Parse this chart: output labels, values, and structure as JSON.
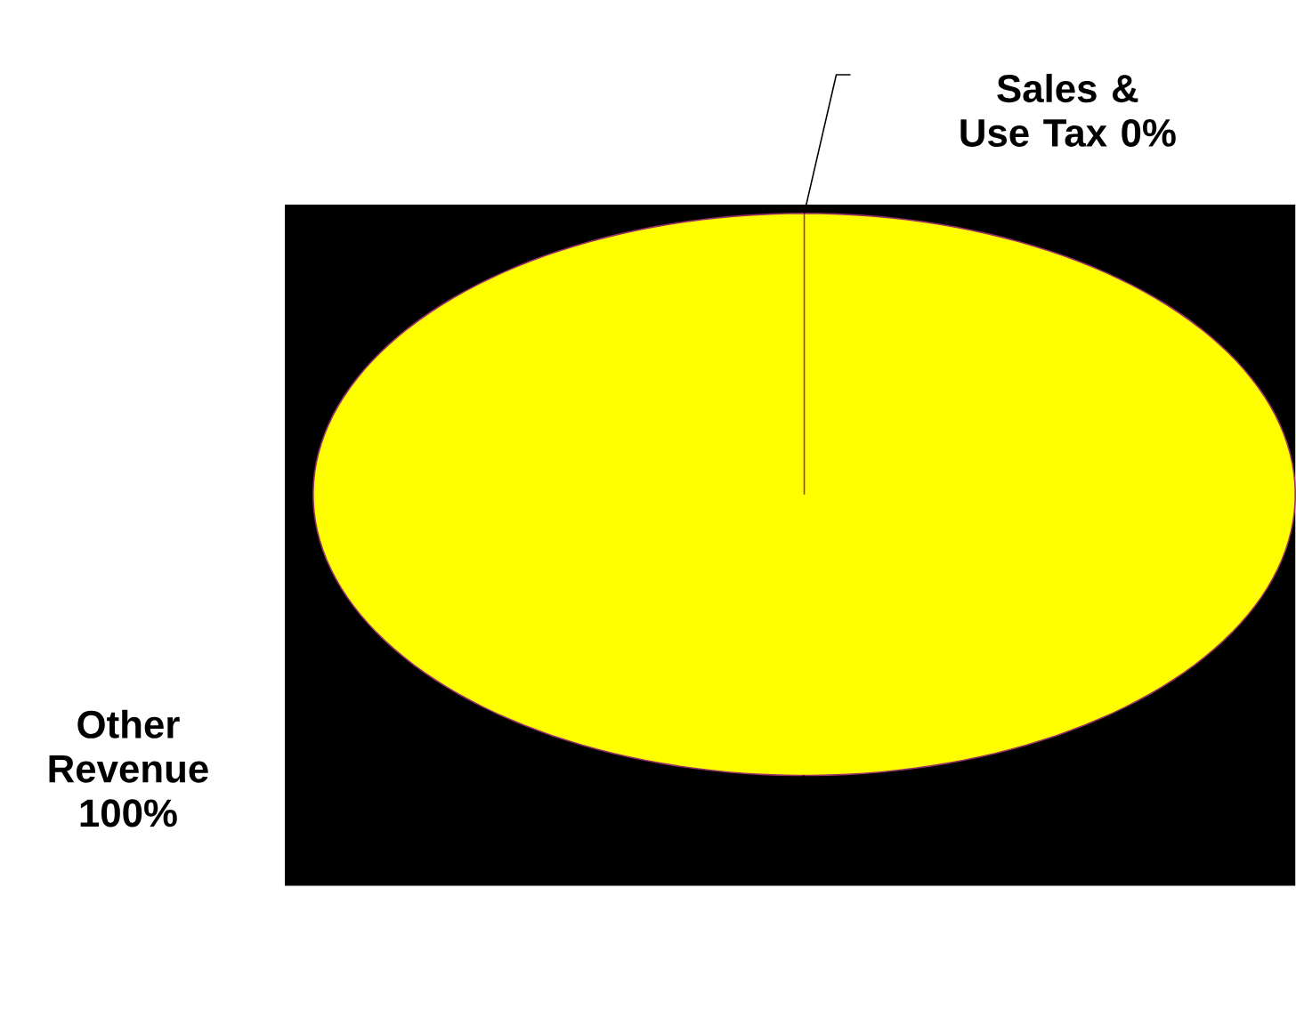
{
  "chart_data": {
    "type": "pie",
    "categories": [
      "Sales & Use Tax",
      "Other Revenue"
    ],
    "values": [
      0,
      100
    ],
    "value_labels": [
      "0%",
      "100%"
    ],
    "colors": [
      "#9999ff",
      "#ffff00"
    ]
  }
}
